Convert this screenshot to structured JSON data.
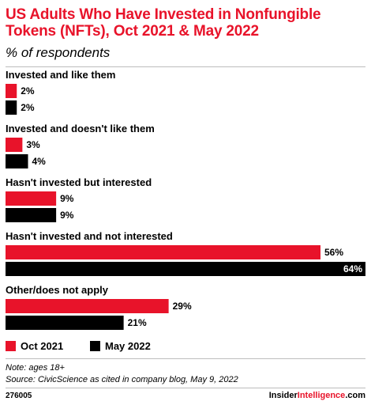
{
  "title": "US Adults Who Have Invested in Nonfungible Tokens (NFTs), Oct 2021 & May 2022",
  "subtitle": "% of respondents",
  "colors": {
    "oct_2021": "#e8132a",
    "may_2022": "#000000",
    "accent": "#e8132a"
  },
  "chart_data": {
    "type": "bar",
    "orientation": "horizontal",
    "categories": [
      "Invested and like them",
      "Invested and doesn't like them",
      "Hasn't invested but interested",
      "Hasn't invested and not interested",
      "Other/does not apply"
    ],
    "series": [
      {
        "name": "Oct 2021",
        "values": [
          2,
          3,
          9,
          56,
          29
        ],
        "labels": [
          "2%",
          "3%",
          "9%",
          "56%",
          "29%"
        ]
      },
      {
        "name": "May 2022",
        "values": [
          2,
          4,
          9,
          64,
          21
        ],
        "labels": [
          "2%",
          "4%",
          "9%",
          "64%",
          "21%"
        ]
      }
    ],
    "xlim": [
      0,
      64
    ],
    "grid": false,
    "legend": "bottom-left"
  },
  "notes": {
    "note": "Note: ages 18+",
    "source": "Source: CivicScience as cited in company blog, May 9, 2022"
  },
  "footer": {
    "id": "276005",
    "brand_part1": "Insider",
    "brand_part2": "Intelligence",
    "brand_part3": ".com"
  }
}
